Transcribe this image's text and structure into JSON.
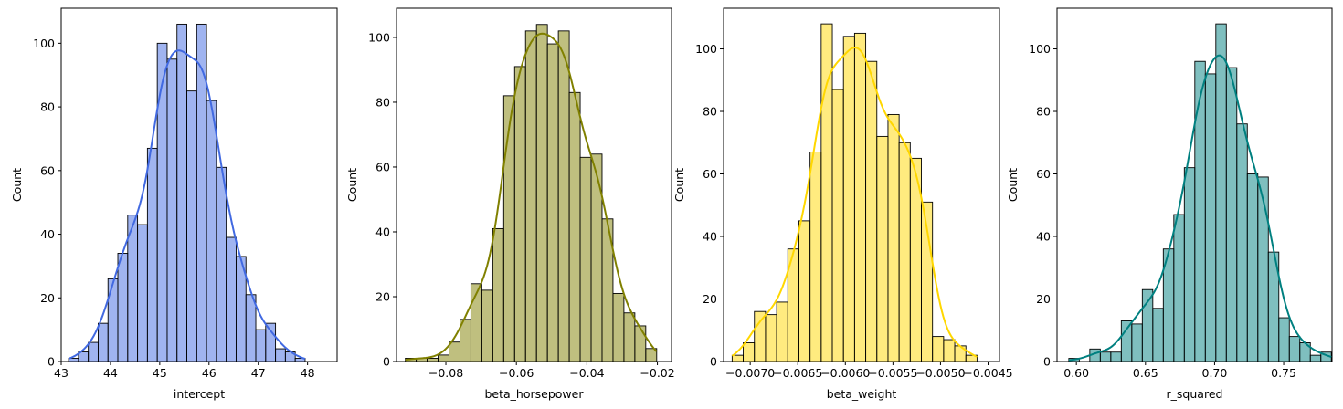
{
  "chart_data": [
    {
      "type": "histogram",
      "xlabel": "intercept",
      "ylabel": "Count",
      "color": "#4169e1",
      "kde": true,
      "bin_start": 43.15,
      "bin_width": 0.2,
      "counts": [
        1,
        3,
        6,
        12,
        26,
        34,
        46,
        43,
        67,
        100,
        95,
        106,
        85,
        106,
        82,
        61,
        39,
        33,
        21,
        10,
        12,
        4,
        3,
        1
      ],
      "xlim": [
        43.0,
        48.6
      ],
      "ylim": [
        0,
        111
      ],
      "xticks": [
        {
          "v": 43,
          "label": "43"
        },
        {
          "v": 44,
          "label": "44"
        },
        {
          "v": 45,
          "label": "45"
        },
        {
          "v": 46,
          "label": "46"
        },
        {
          "v": 47,
          "label": "47"
        },
        {
          "v": 48,
          "label": "48"
        }
      ],
      "yticks": [
        {
          "v": 0,
          "label": "0"
        },
        {
          "v": 20,
          "label": "20"
        },
        {
          "v": 40,
          "label": "40"
        },
        {
          "v": 60,
          "label": "60"
        },
        {
          "v": 80,
          "label": "80"
        },
        {
          "v": 100,
          "label": "100"
        }
      ]
    },
    {
      "type": "histogram",
      "xlabel": "beta_horsepower",
      "ylabel": "Count",
      "color": "#808000",
      "kde": true,
      "bin_start": -0.0915,
      "bin_width": 0.0031,
      "counts": [
        1,
        1,
        1,
        2,
        6,
        13,
        24,
        22,
        41,
        82,
        91,
        102,
        104,
        98,
        102,
        83,
        63,
        64,
        44,
        21,
        15,
        11,
        4
      ],
      "xlim": [
        -0.094,
        -0.016
      ],
      "ylim": [
        0,
        109
      ],
      "xticks": [
        {
          "v": -0.08,
          "label": "−0.08"
        },
        {
          "v": -0.06,
          "label": "−0.06"
        },
        {
          "v": -0.04,
          "label": "−0.04"
        },
        {
          "v": -0.02,
          "label": "−0.02"
        }
      ],
      "yticks": [
        {
          "v": 0,
          "label": "0"
        },
        {
          "v": 20,
          "label": "20"
        },
        {
          "v": 40,
          "label": "40"
        },
        {
          "v": 60,
          "label": "60"
        },
        {
          "v": 80,
          "label": "80"
        },
        {
          "v": 100,
          "label": "100"
        }
      ]
    },
    {
      "type": "histogram",
      "xlabel": "beta_weight",
      "ylabel": "Count",
      "color": "#ffd700",
      "kde": true,
      "bin_start": -0.00719,
      "bin_width": 0.000117,
      "counts": [
        2,
        6,
        16,
        15,
        19,
        36,
        45,
        67,
        108,
        87,
        104,
        105,
        96,
        72,
        79,
        70,
        65,
        51,
        8,
        7,
        5,
        2
      ],
      "xlim": [
        -0.00728,
        -0.00438
      ],
      "ylim": [
        0,
        113
      ],
      "xticks": [
        {
          "v": -0.007,
          "label": "−0.0070"
        },
        {
          "v": -0.0065,
          "label": "−0.0065"
        },
        {
          "v": -0.006,
          "label": "−0.0060"
        },
        {
          "v": -0.0055,
          "label": "−0.0055"
        },
        {
          "v": -0.005,
          "label": "−0.0050"
        },
        {
          "v": -0.0045,
          "label": "−0.0045"
        }
      ],
      "yticks": [
        {
          "v": 0,
          "label": "0"
        },
        {
          "v": 20,
          "label": "20"
        },
        {
          "v": 40,
          "label": "40"
        },
        {
          "v": 60,
          "label": "60"
        },
        {
          "v": 80,
          "label": "80"
        },
        {
          "v": 100,
          "label": "100"
        }
      ]
    },
    {
      "type": "histogram",
      "xlabel": "r_squared",
      "ylabel": "Count",
      "color": "#008080",
      "kde": true,
      "bin_start": 0.5945,
      "bin_width": 0.0076,
      "counts": [
        1,
        0,
        4,
        3,
        3,
        13,
        12,
        23,
        17,
        36,
        47,
        62,
        96,
        92,
        108,
        94,
        76,
        60,
        59,
        35,
        14,
        8,
        6,
        2,
        3
      ],
      "xlim": [
        0.586,
        0.785
      ],
      "ylim": [
        0,
        113
      ],
      "xticks": [
        {
          "v": 0.6,
          "label": "0.60"
        },
        {
          "v": 0.65,
          "label": "0.65"
        },
        {
          "v": 0.7,
          "label": "0.70"
        },
        {
          "v": 0.75,
          "label": "0.75"
        }
      ],
      "yticks": [
        {
          "v": 0,
          "label": "0"
        },
        {
          "v": 20,
          "label": "20"
        },
        {
          "v": 40,
          "label": "40"
        },
        {
          "v": 60,
          "label": "60"
        },
        {
          "v": 80,
          "label": "80"
        },
        {
          "v": 100,
          "label": "100"
        }
      ]
    }
  ]
}
